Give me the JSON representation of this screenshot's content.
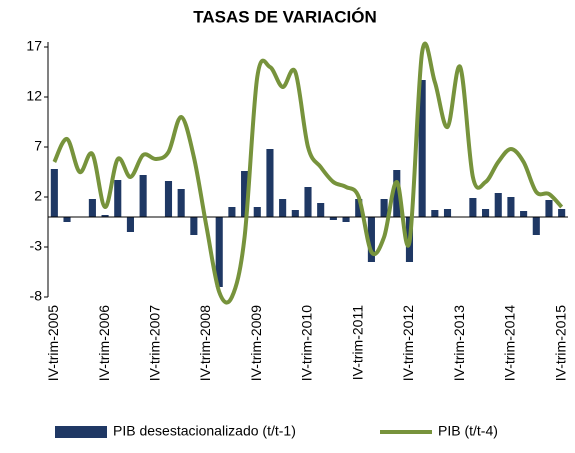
{
  "chart_data": {
    "type": "bar_line",
    "title": "TASAS DE VARIACIÓN",
    "categories": [
      "IV-trim-2005",
      null,
      null,
      null,
      "IV-trim-2006",
      null,
      null,
      null,
      "IV-trim-2007",
      null,
      null,
      null,
      "IV-trim-2008",
      null,
      null,
      null,
      "IV-trim-2009",
      null,
      null,
      null,
      "IV-trim-2010",
      null,
      null,
      null,
      "IV-trim-2011",
      null,
      null,
      null,
      "IV-trim-2012",
      null,
      null,
      null,
      "IV-trim-2013",
      null,
      null,
      null,
      "IV-trim-2014",
      null,
      null,
      null,
      "IV-trim-2015"
    ],
    "series": [
      {
        "name": "PIB desestacionalizado (t/t-1)",
        "type": "bar",
        "color": "#1f3864",
        "values": [
          4.8,
          -0.5,
          0,
          1.8,
          0.2,
          3.7,
          -1.5,
          4.2,
          0,
          3.6,
          2.8,
          -1.8,
          0,
          -7.0,
          1.0,
          4.6,
          1.0,
          6.8,
          1.8,
          0.7,
          3.0,
          1.4,
          -0.3,
          -0.5,
          1.8,
          -4.5,
          1.8,
          4.7,
          -4.5,
          13.7,
          0.7,
          0.8,
          0,
          1.9,
          0.8,
          2.4,
          2.0,
          0.6,
          -1.8,
          1.7,
          0.8
        ]
      },
      {
        "name": "PIB (t/t-4)",
        "type": "line",
        "color": "#77933c",
        "values": [
          5.5,
          7.8,
          4.5,
          6.3,
          1.0,
          5.8,
          4.0,
          6.2,
          5.8,
          6.5,
          10.0,
          6.0,
          -1.0,
          -7.5,
          -8.0,
          -2.0,
          14.0,
          15.0,
          13.0,
          14.5,
          7.0,
          5.0,
          3.5,
          3.0,
          2.0,
          -3.5,
          -2.0,
          3.5,
          -2.5,
          16.5,
          13.5,
          9.0,
          15.0,
          4.0,
          3.5,
          5.5,
          6.8,
          5.5,
          2.5,
          2.3,
          1.0
        ]
      }
    ],
    "ylim": [
      -8,
      17
    ],
    "yticks": [
      -8,
      -3,
      2,
      7,
      12,
      17
    ],
    "grid": false,
    "legend": "bottom"
  }
}
